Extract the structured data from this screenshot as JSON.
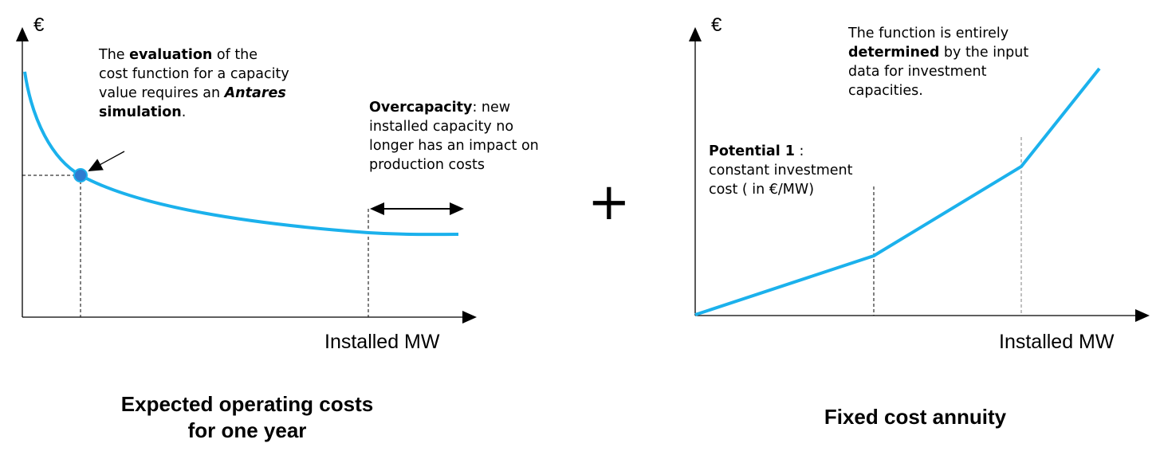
{
  "left_panel": {
    "y_axis_symbol": "€",
    "x_axis_label": "Installed MW",
    "annotation_evaluation": {
      "part1": "The ",
      "bold1": "evaluation",
      "part2": " of the",
      "line2": "cost function for a capacity",
      "line3_prefix": "value requires an ",
      "line3_emph": "Antares",
      "line4_bold": "simulation",
      "line4_suffix": "."
    },
    "annotation_overcapacity": {
      "bold": "Overcapacity",
      "rest1": ": new",
      "line2": "installed capacity no",
      "line3": "longer has an impact on",
      "line4": "production costs"
    },
    "caption_line1": "Expected operating costs",
    "caption_line2": "for one year"
  },
  "operator": "+",
  "right_panel": {
    "y_axis_symbol": "€",
    "x_axis_label": "Installed MW",
    "annotation_function": {
      "line1": "The function is entirely",
      "line2_bold": "determined",
      "line2_rest": " by the input",
      "line3": "data for investment",
      "line4": "capacities."
    },
    "annotation_potential": {
      "bold": "Potential 1",
      "rest1": " :",
      "line2": "constant investment",
      "line3": "cost ( in €/MW)"
    },
    "caption": "Fixed cost annuity"
  },
  "colors": {
    "curve": "#1BB1EC",
    "point_fill": "#2F7BD0",
    "axis": "#000000"
  }
}
